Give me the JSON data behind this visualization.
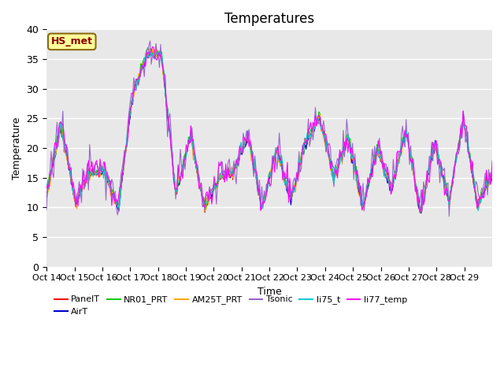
{
  "title": "Temperatures",
  "xlabel": "Time",
  "ylabel": "Temperature",
  "ylim": [
    0,
    40
  ],
  "yticks": [
    0,
    5,
    10,
    15,
    20,
    25,
    30,
    35,
    40
  ],
  "xtick_labels": [
    "Oct 14",
    "Oct 15",
    "Oct 16",
    "Oct 17",
    "Oct 18",
    "Oct 19",
    "Oct 20",
    "Oct 21",
    "Oct 22",
    "Oct 23",
    "Oct 24",
    "Oct 25",
    "Oct 26",
    "Oct 27",
    "Oct 28",
    "Oct 29"
  ],
  "annotation_text": "HS_met",
  "annotation_color": "#8B0000",
  "annotation_bg": "#FFFF99",
  "annotation_border": "#8B6914",
  "series_colors": {
    "PanelT": "#FF0000",
    "AirT": "#0000CD",
    "NR01_PRT": "#00CC00",
    "AM25T_PRT": "#FFA500",
    "Tsonic": "#9966CC",
    "li75_t": "#00CCCC",
    "li77_temp": "#FF00FF"
  },
  "bg_color": "#E8E8E8",
  "fig_bg": "#FFFFFF",
  "grid_color": "#FFFFFF",
  "title_fontsize": 12,
  "axis_fontsize": 9,
  "legend_fontsize": 8,
  "n_days": 16,
  "n_per_day": 24
}
